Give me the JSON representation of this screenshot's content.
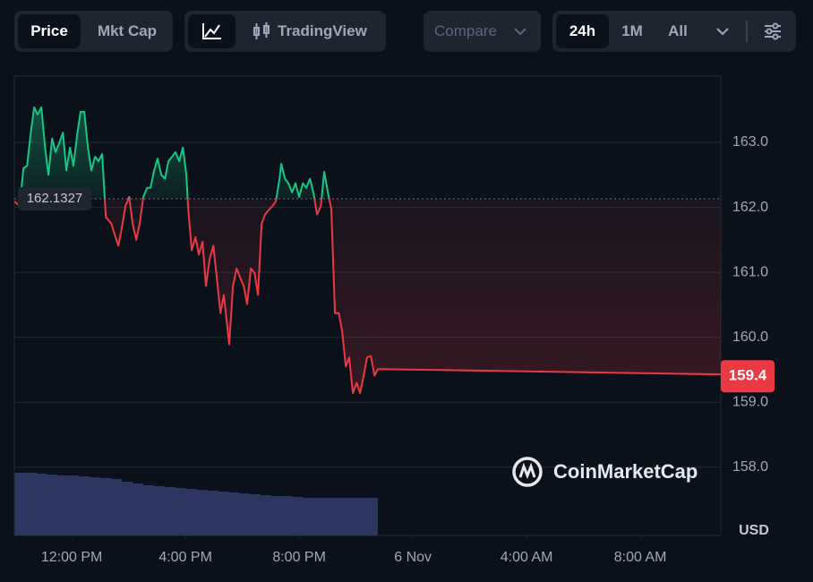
{
  "toolbar": {
    "price": "Price",
    "mkt_cap": "Mkt Cap",
    "tradingview": "TradingView",
    "compare": "Compare",
    "range_24h": "24h",
    "range_1m": "1M",
    "range_all": "All"
  },
  "watermark": "CoinMarketCap",
  "chart_data": {
    "type": "line",
    "x": [
      9.98,
      10.17,
      10.3,
      10.43,
      10.55,
      10.68,
      10.8,
      10.93,
      11.06,
      11.18,
      11.31,
      11.43,
      11.56,
      11.69,
      11.81,
      11.94,
      12.06,
      12.19,
      12.31,
      12.44,
      12.57,
      12.69,
      12.82,
      12.94,
      13.07,
      13.2,
      13.39,
      13.51,
      13.64,
      13.76,
      13.89,
      14.02,
      14.14,
      14.27,
      14.39,
      14.52,
      14.65,
      14.77,
      14.9,
      15.02,
      15.15,
      15.28,
      15.4,
      15.53,
      15.65,
      15.78,
      15.91,
      16.03,
      16.09,
      16.22,
      16.35,
      16.47,
      16.6,
      16.72,
      16.85,
      16.98,
      17.1,
      17.23,
      17.35,
      17.54,
      17.67,
      17.8,
      17.92,
      18.05,
      18.17,
      18.3,
      18.43,
      18.55,
      18.68,
      18.8,
      18.93,
      19.06,
      19.18,
      19.31,
      19.37,
      19.5,
      19.62,
      19.75,
      19.87,
      20.0,
      20.13,
      20.25,
      20.38,
      20.5,
      20.63,
      20.76,
      20.88,
      21.01,
      21.13,
      21.26,
      21.39,
      21.51,
      21.64,
      21.76,
      21.89,
      22.02,
      22.14,
      22.27,
      22.39,
      22.52,
      22.65,
      22.77,
      34.83
    ],
    "values": [
      162.09,
      162.02,
      162.6,
      162.64,
      163.12,
      163.54,
      163.43,
      163.54,
      162.92,
      162.5,
      163.06,
      162.85,
      162.99,
      163.15,
      162.57,
      162.92,
      162.64,
      163.12,
      163.47,
      163.47,
      162.92,
      162.57,
      162.78,
      162.71,
      162.82,
      161.85,
      161.75,
      161.58,
      161.41,
      161.68,
      162.02,
      162.16,
      161.75,
      161.5,
      161.75,
      162.16,
      162.3,
      162.3,
      162.57,
      162.75,
      162.5,
      162.44,
      162.71,
      162.78,
      162.85,
      162.71,
      162.92,
      162.5,
      162.02,
      161.34,
      161.54,
      161.27,
      161.47,
      160.79,
      161.2,
      161.41,
      160.92,
      160.37,
      160.65,
      159.89,
      160.79,
      161.06,
      160.92,
      160.79,
      160.51,
      161.06,
      160.99,
      160.65,
      161.75,
      161.89,
      161.96,
      162.02,
      162.09,
      162.44,
      162.67,
      162.44,
      162.37,
      162.23,
      162.37,
      162.16,
      162.37,
      162.3,
      162.44,
      162.23,
      161.89,
      162.02,
      162.55,
      162.23,
      161.98,
      160.37,
      160.37,
      160.1,
      159.55,
      159.69,
      159.14,
      159.3,
      159.14,
      159.41,
      159.69,
      159.71,
      159.41,
      159.51,
      159.43
    ],
    "baseline": 162.1327,
    "current_price": 159.4,
    "up_color": "#16c784",
    "down_color": "#ea3943",
    "volume_color": "#2c3660",
    "volume": {
      "x": [
        10.0,
        10.375,
        10.75,
        11.125,
        11.5,
        11.875,
        12.25,
        12.625,
        13.0,
        13.375,
        13.75,
        14.125,
        14.5,
        14.875,
        15.25,
        15.625,
        16.0,
        16.375,
        16.75,
        17.125,
        17.5,
        17.875,
        18.25,
        18.625,
        19.0,
        19.375,
        19.75,
        20.125,
        20.5,
        20.875,
        21.25,
        21.625,
        22.0,
        22.375
      ],
      "values": [
        70,
        70,
        69,
        68,
        67,
        67,
        66,
        65,
        64,
        63,
        60,
        58,
        56,
        55,
        54,
        53,
        52,
        51,
        50,
        49,
        48,
        47,
        46,
        45,
        44,
        44,
        43,
        42,
        42,
        42,
        42,
        42,
        42,
        42
      ]
    },
    "xlim": [
      9.98,
      34.83
    ],
    "xticks": [
      {
        "value": 12,
        "label": "12:00 PM"
      },
      {
        "value": 16,
        "label": "4:00 PM"
      },
      {
        "value": 20,
        "label": "8:00 PM"
      },
      {
        "value": 24,
        "label": "6 Nov"
      },
      {
        "value": 28,
        "label": "4:00 AM"
      },
      {
        "value": 32,
        "label": "8:00 AM"
      }
    ],
    "ylim": [
      156.95,
      164.02
    ],
    "yticks": [
      {
        "value": 158,
        "label": "158.0"
      },
      {
        "value": 159,
        "label": "159.0"
      },
      {
        "value": 160,
        "label": "160.0"
      },
      {
        "value": 161,
        "label": "161.0"
      },
      {
        "value": 162,
        "label": "162.0"
      },
      {
        "value": 163,
        "label": "163.0"
      }
    ],
    "y_label": "USD",
    "grid": true
  }
}
